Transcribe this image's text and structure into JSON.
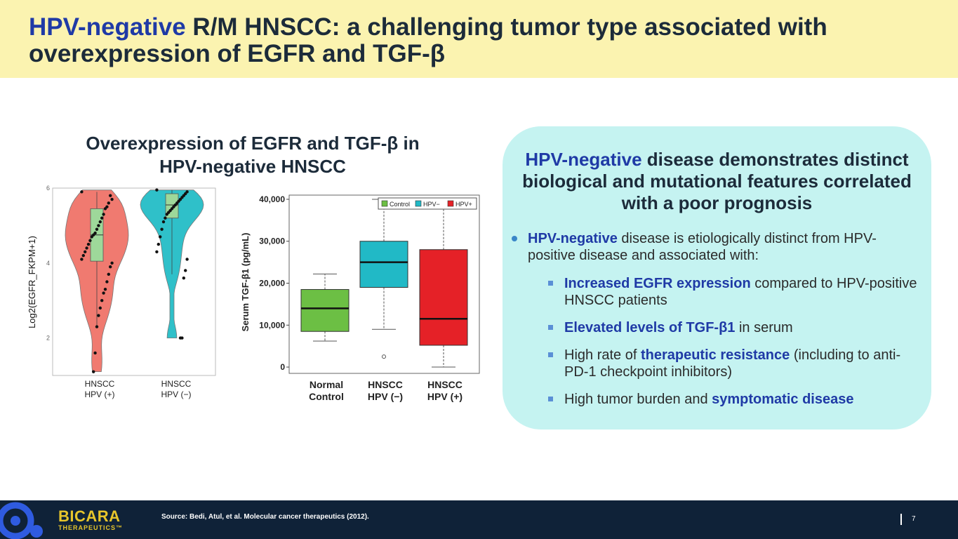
{
  "slide": {
    "title_highlight": "HPV-negative",
    "title_rest": " R/M HNSCC: a challenging tumor type associated with overexpression of EGFR and TGF-β",
    "chart_heading_line1": "Overexpression of EGFR and TGF-β in",
    "chart_heading_line2": "HPV-negative HNSCC"
  },
  "panel": {
    "title_highlight": "HPV-negative",
    "title_rest": " disease demonstrates distinct biological and mutational features correlated with a poor prognosis",
    "bullet_highlight": "HPV-negative",
    "bullet_rest": " disease is etiologically distinct from HPV-positive disease and associated with:",
    "sub1_highlight": "Increased EGFR expression",
    "sub1_rest": " compared to HPV-positive HNSCC patients",
    "sub2_highlight": "Elevated levels of TGF-β1",
    "sub2_rest": " in serum",
    "sub3_prefix": "High rate of ",
    "sub3_highlight": "therapeutic resistance",
    "sub3_rest": " (including to anti-PD-1 checkpoint inhibitors)",
    "sub4_prefix": "High tumor burden and ",
    "sub4_highlight": "symptomatic disease"
  },
  "footer": {
    "brand": "BICARA",
    "brand_sub": "THERAPEUTICS™",
    "source": "Source: Bedi, Atul, et al. Molecular cancer therapeutics (2012).",
    "page": "7"
  },
  "colors": {
    "header_bg": "#fbf3b0",
    "highlight_blue": "#1f3aa6",
    "panel_bg": "#c5f3f1",
    "footer_bg": "#0f2238",
    "brand_yellow": "#e7c52b"
  },
  "chart_data": [
    {
      "type": "violin",
      "ylabel": "Log2(EGFR_FKPM+1)",
      "ylim": [
        1,
        6
      ],
      "yticks": [
        2,
        4,
        6
      ],
      "categories": [
        "HNSCC\nHPV (+)",
        "HNSCC\nHPV (−)"
      ],
      "category_colors": [
        "#f07a70",
        "#2fc0c9"
      ],
      "box_color": "#9ed89a",
      "series": [
        {
          "q1": 4.05,
          "median": 4.75,
          "q3": 5.45,
          "whisker_low": 2.3,
          "whisker_high": 5.9,
          "min": 1.1,
          "max": 5.95,
          "points": [
            5.9,
            5.7,
            5.8,
            5.6,
            5.5,
            5.45,
            5.3,
            5.2,
            5.1,
            5.0,
            4.9,
            4.8,
            4.75,
            4.7,
            4.6,
            4.5,
            4.4,
            4.3,
            4.2,
            4.1,
            4.0,
            3.9,
            3.7,
            3.5,
            3.3,
            3.2,
            3.0,
            2.8,
            2.6,
            2.3,
            1.6,
            1.1
          ]
        },
        {
          "q1": 5.2,
          "median": 5.55,
          "q3": 5.85,
          "whisker_low": 3.7,
          "whisker_high": 5.95,
          "min": 2.0,
          "max": 5.95,
          "points": [
            5.95,
            5.9,
            5.85,
            5.8,
            5.75,
            5.7,
            5.65,
            5.6,
            5.55,
            5.5,
            5.45,
            5.4,
            5.35,
            5.3,
            5.2,
            5.1,
            4.9,
            4.7,
            4.5,
            4.3,
            4.1,
            3.8,
            3.6,
            2.0,
            2.0
          ]
        }
      ]
    },
    {
      "type": "box",
      "ylabel": "Serum TGF-β1 (pg/mL)",
      "ylim": [
        -1500,
        41000
      ],
      "yticks": [
        0,
        10000,
        20000,
        30000,
        40000
      ],
      "ytick_labels": [
        "0",
        "10,000",
        "20,000",
        "30,000",
        "40,000"
      ],
      "categories": [
        "Normal\nControl",
        "HNSCC\nHPV (−)",
        "HNSCC\nHPV (+)"
      ],
      "legend": [
        {
          "label": "Control",
          "color": "#6cbf44"
        },
        {
          "label": "HPV−",
          "color": "#21b9c6"
        },
        {
          "label": "HPV+",
          "color": "#e52127"
        }
      ],
      "legend_position": "top-right",
      "series": [
        {
          "name": "Control",
          "color": "#6cbf44",
          "whisker_low": 6200,
          "q1": 8500,
          "median": 14000,
          "q3": 18500,
          "whisker_high": 22200,
          "outliers": []
        },
        {
          "name": "HPV−",
          "color": "#21b9c6",
          "whisker_low": 9000,
          "q1": 19000,
          "median": 25000,
          "q3": 30000,
          "whisker_high": 40000,
          "outliers": [
            2500
          ]
        },
        {
          "name": "HPV+",
          "color": "#e52127",
          "whisker_low": 0,
          "q1": 5200,
          "median": 11500,
          "q3": 28000,
          "whisker_high": 40000,
          "outliers": []
        }
      ]
    }
  ]
}
